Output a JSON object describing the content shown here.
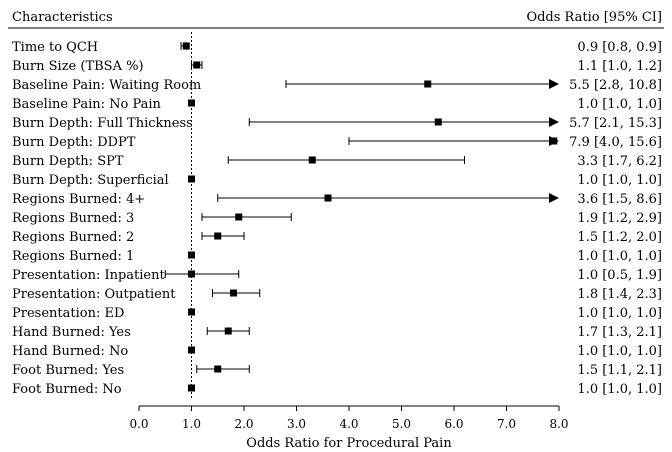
{
  "chart_data": {
    "type": "forest",
    "header": {
      "left": "Characteristics",
      "right": "Odds Ratio [95% CI]"
    },
    "xlabel": "Odds Ratio for Procedural Pain",
    "xlim": [
      0,
      8
    ],
    "ticks": [
      "0.0",
      "1.0",
      "2.0",
      "3.0",
      "4.0",
      "5.0",
      "6.0",
      "7.0",
      "8.0"
    ],
    "reference_line": 1.0,
    "rows": [
      {
        "label": "Time to QCH",
        "or": 0.9,
        "lower": 0.8,
        "upper": 0.9,
        "text": "0.9 [0.8,  0.9]"
      },
      {
        "label": "Burn Size (TBSA %)",
        "or": 1.1,
        "lower": 1.0,
        "upper": 1.2,
        "text": "1.1 [1.0,  1.2]"
      },
      {
        "label": "Baseline Pain: Waiting Room",
        "or": 5.5,
        "lower": 2.8,
        "upper": 10.8,
        "text": "5.5 [2.8, 10.8]"
      },
      {
        "label": "Baseline Pain: No Pain",
        "or": 1.0,
        "lower": 1.0,
        "upper": 1.0,
        "text": "1.0 [1.0,  1.0]"
      },
      {
        "label": "Burn Depth: Full Thickness",
        "or": 5.7,
        "lower": 2.1,
        "upper": 15.3,
        "text": "5.7 [2.1, 15.3]"
      },
      {
        "label": "Burn Depth: DDPT",
        "or": 7.9,
        "lower": 4.0,
        "upper": 15.6,
        "text": "7.9 [4.0, 15.6]"
      },
      {
        "label": "Burn Depth: SPT",
        "or": 3.3,
        "lower": 1.7,
        "upper": 6.2,
        "text": "3.3 [1.7,  6.2]"
      },
      {
        "label": "Burn Depth: Superficial",
        "or": 1.0,
        "lower": 1.0,
        "upper": 1.0,
        "text": "1.0 [1.0,  1.0]"
      },
      {
        "label": "Regions Burned: 4+",
        "or": 3.6,
        "lower": 1.5,
        "upper": 8.6,
        "text": "3.6 [1.5,  8.6]"
      },
      {
        "label": "Regions Burned: 3",
        "or": 1.9,
        "lower": 1.2,
        "upper": 2.9,
        "text": "1.9 [1.2,  2.9]"
      },
      {
        "label": "Regions Burned: 2",
        "or": 1.5,
        "lower": 1.2,
        "upper": 2.0,
        "text": "1.5 [1.2,  2.0]"
      },
      {
        "label": "Regions Burned: 1",
        "or": 1.0,
        "lower": 1.0,
        "upper": 1.0,
        "text": "1.0 [1.0,  1.0]"
      },
      {
        "label": "Presentation: Inpatient",
        "or": 1.0,
        "lower": 0.5,
        "upper": 1.9,
        "text": "1.0 [0.5,  1.9]"
      },
      {
        "label": "Presentation: Outpatient",
        "or": 1.8,
        "lower": 1.4,
        "upper": 2.3,
        "text": "1.8 [1.4,  2.3]"
      },
      {
        "label": "Presentation: ED",
        "or": 1.0,
        "lower": 1.0,
        "upper": 1.0,
        "text": "1.0 [1.0,  1.0]"
      },
      {
        "label": "Hand Burned: Yes",
        "or": 1.7,
        "lower": 1.3,
        "upper": 2.1,
        "text": "1.7 [1.3,  2.1]"
      },
      {
        "label": "Hand Burned: No",
        "or": 1.0,
        "lower": 1.0,
        "upper": 1.0,
        "text": "1.0 [1.0,  1.0]"
      },
      {
        "label": "Foot Burned: Yes",
        "or": 1.5,
        "lower": 1.1,
        "upper": 2.1,
        "text": "1.5 [1.1,  2.1]"
      },
      {
        "label": "Foot Burned: No",
        "or": 1.0,
        "lower": 1.0,
        "upper": 1.0,
        "text": "1.0 [1.0,  1.0]"
      }
    ]
  }
}
